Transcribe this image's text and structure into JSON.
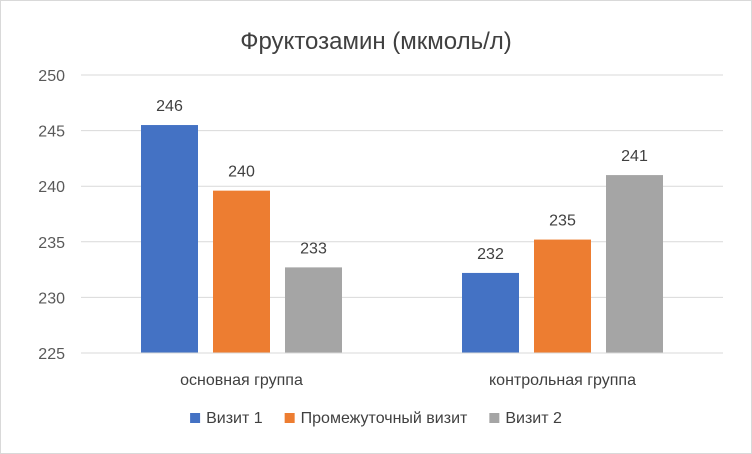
{
  "chart_data": {
    "type": "bar",
    "title": "Фруктозамин (мкмоль/л)",
    "xlabel": "",
    "ylabel": "",
    "ylim": [
      225,
      250
    ],
    "yticks": [
      225,
      230,
      235,
      240,
      245,
      250
    ],
    "grid": true,
    "legend_position": "bottom",
    "categories": [
      "основная группа",
      "контрольная группа"
    ],
    "series": [
      {
        "name": "Визит 1",
        "color": "#4472C4",
        "values": [
          245.5,
          232.2
        ],
        "labels": [
          "246",
          "232"
        ]
      },
      {
        "name": "Промежуточный визит",
        "color": "#ED7D31",
        "values": [
          239.6,
          235.2
        ],
        "labels": [
          "240",
          "235"
        ]
      },
      {
        "name": "Визит 2",
        "color": "#A5A5A5",
        "values": [
          232.7,
          241.0
        ],
        "labels": [
          "233",
          "241"
        ]
      }
    ]
  }
}
